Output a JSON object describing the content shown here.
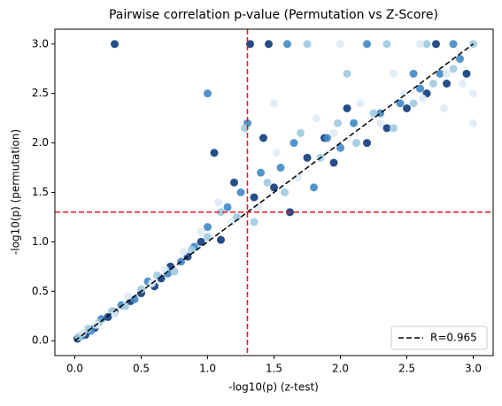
{
  "chart_data": {
    "type": "scatter",
    "title": "Pairwise correlation p-value (Permutation vs Z-Score)",
    "xlabel": "-log10(p) (z-test)",
    "ylabel": "-log10(p) (permutation)",
    "xlim": [
      -0.15,
      3.15
    ],
    "ylim": [
      -0.15,
      3.15
    ],
    "xticks": [
      {
        "value": 0,
        "label": "0.0"
      },
      0.5,
      {
        "value": 1,
        "label": "1.0"
      },
      1.5,
      {
        "value": 2,
        "label": "2.0"
      },
      2.5,
      {
        "value": 3,
        "label": "3.0"
      }
    ],
    "yticks": [
      {
        "value": 0,
        "label": "0.0"
      },
      0.5,
      {
        "value": 1,
        "label": "1.0"
      },
      1.5,
      {
        "value": 2,
        "label": "2.0"
      },
      2.5,
      {
        "value": 3,
        "label": "3.0"
      }
    ],
    "groups": [
      {
        "color": "#0d3b7a",
        "x": [
          0.02,
          0.08,
          0.15,
          0.25,
          0.3,
          0.42,
          0.5,
          0.6,
          0.65,
          0.72,
          0.85,
          0.95,
          1.05,
          1.1,
          1.2,
          1.35,
          1.42,
          1.5,
          1.62,
          1.75,
          1.88,
          1.95,
          2.05,
          2.2,
          2.35,
          2.5,
          2.65,
          2.8,
          2.95,
          0.3,
          1.32,
          1.46,
          2.72
        ],
        "y": [
          0.02,
          0.06,
          0.13,
          0.24,
          0.29,
          0.4,
          0.48,
          0.55,
          0.63,
          0.75,
          0.85,
          1.0,
          1.9,
          1.02,
          1.6,
          1.45,
          2.05,
          1.55,
          1.3,
          1.85,
          2.05,
          1.8,
          2.35,
          2.0,
          2.15,
          2.35,
          2.5,
          2.6,
          2.7,
          3.0,
          3.0,
          3.0,
          3.0
        ]
      },
      {
        "color": "#3f88c5",
        "x": [
          0.05,
          0.12,
          0.2,
          0.35,
          0.45,
          0.55,
          0.7,
          0.8,
          0.9,
          1.0,
          1.15,
          1.25,
          1.3,
          1.4,
          1.55,
          1.65,
          1.8,
          1.9,
          2.0,
          2.1,
          2.3,
          2.45,
          2.6,
          2.75,
          2.9,
          1.6,
          2.2,
          2.55,
          2.85,
          1.0
        ],
        "y": [
          0.05,
          0.1,
          0.22,
          0.36,
          0.42,
          0.6,
          0.68,
          0.8,
          0.95,
          1.15,
          1.35,
          1.5,
          2.2,
          1.7,
          1.75,
          2.0,
          1.55,
          2.05,
          1.95,
          2.2,
          2.3,
          2.4,
          2.55,
          2.7,
          2.85,
          3.0,
          3.0,
          2.7,
          3.0,
          2.5
        ]
      },
      {
        "color": "#9ecae1",
        "x": [
          0.03,
          0.1,
          0.18,
          0.28,
          0.38,
          0.5,
          0.62,
          0.75,
          0.88,
          1.0,
          1.1,
          1.22,
          1.28,
          1.35,
          1.45,
          1.58,
          1.7,
          1.85,
          1.98,
          2.12,
          2.25,
          2.4,
          2.55,
          2.7,
          2.85,
          3.0,
          1.75,
          2.05,
          2.35,
          2.65
        ],
        "y": [
          0.04,
          0.12,
          0.18,
          0.3,
          0.35,
          0.52,
          0.66,
          0.7,
          0.92,
          1.05,
          1.3,
          1.25,
          2.15,
          1.2,
          1.6,
          1.5,
          2.1,
          1.85,
          2.2,
          2.0,
          2.3,
          2.15,
          2.4,
          2.6,
          2.75,
          3.0,
          3.0,
          2.7,
          3.0,
          3.0
        ]
      },
      {
        "color": "#deebf7",
        "x": [
          0.06,
          0.16,
          0.3,
          0.4,
          0.58,
          0.68,
          0.82,
          0.95,
          1.08,
          1.18,
          1.38,
          1.52,
          1.68,
          1.82,
          1.95,
          2.15,
          2.3,
          2.48,
          2.62,
          2.78,
          2.92,
          3.0,
          2.0,
          2.4,
          2.8,
          1.5,
          2.6,
          3.0
        ],
        "y": [
          0.08,
          0.16,
          0.27,
          0.45,
          0.58,
          0.72,
          0.9,
          1.1,
          1.4,
          1.2,
          1.35,
          1.9,
          1.65,
          2.25,
          2.1,
          2.4,
          2.2,
          2.5,
          2.45,
          2.35,
          2.6,
          2.5,
          3.0,
          2.7,
          2.7,
          2.4,
          3.0,
          2.2
        ]
      }
    ],
    "hlines": [
      {
        "value": 1.3,
        "color": "#e41a1c"
      }
    ],
    "vlines": [
      {
        "value": 1.3,
        "color": "#e41a1c"
      }
    ],
    "fit": {
      "name": "R=0.965",
      "x": [
        0,
        3
      ],
      "y": [
        0,
        3
      ],
      "color": "#000000"
    },
    "legend": "lower right"
  }
}
